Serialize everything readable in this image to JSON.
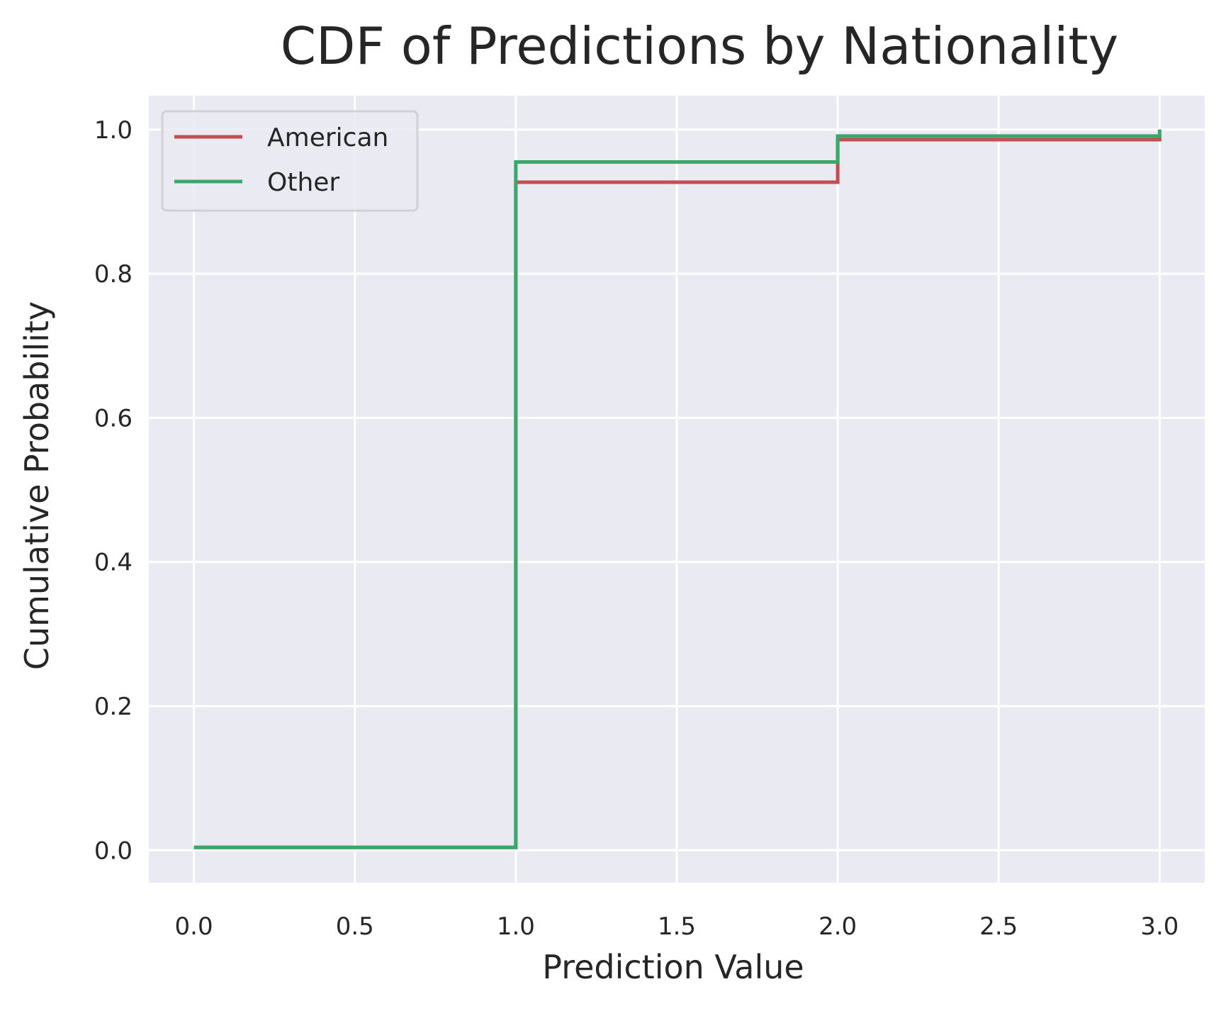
{
  "chart_data": {
    "type": "line",
    "title": "CDF of Predictions by Nationality",
    "xlabel": "Prediction Value",
    "ylabel": "Cumulative Probability",
    "xlim": [
      -0.14,
      3.14
    ],
    "ylim": [
      -0.045,
      1.047
    ],
    "xticks": [
      0.0,
      0.5,
      1.0,
      1.5,
      2.0,
      2.5,
      3.0
    ],
    "xtick_labels": [
      "0.0",
      "0.5",
      "1.0",
      "1.5",
      "2.0",
      "2.5",
      "3.0"
    ],
    "yticks": [
      0.0,
      0.2,
      0.4,
      0.6,
      0.8,
      1.0
    ],
    "ytick_labels": [
      "0.0",
      "0.2",
      "0.4",
      "0.6",
      "0.8",
      "1.0"
    ],
    "grid": true,
    "legend_position": "top-left",
    "background_color": "#eaeaf2",
    "step": "post",
    "series": [
      {
        "name": "American",
        "color": "#c44e52",
        "x": [
          0.0,
          1.0,
          2.0,
          3.0
        ],
        "y": [
          0.004,
          0.927,
          0.986,
          1.0
        ]
      },
      {
        "name": "Other",
        "color": "#3aa86a",
        "x": [
          0.0,
          1.0,
          2.0,
          3.0
        ],
        "y": [
          0.004,
          0.955,
          0.991,
          1.0
        ]
      }
    ]
  }
}
